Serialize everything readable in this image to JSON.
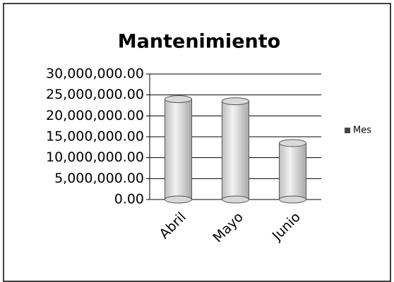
{
  "chart_data": {
    "type": "bar",
    "title": "Mantenimiento",
    "categories": [
      "Abril",
      "Mayo",
      "Junio"
    ],
    "series": [
      {
        "name": "Mes",
        "color": "#d9d9d9",
        "values": [
          24000000,
          23500000,
          13500000
        ]
      }
    ],
    "ylim": [
      0,
      30000000
    ],
    "yticks": [
      {
        "value": 0,
        "label": "0.00"
      },
      {
        "value": 5000000,
        "label": "5,000,000.00"
      },
      {
        "value": 10000000,
        "label": "10,000,000.00"
      },
      {
        "value": 15000000,
        "label": "15,000,000.00"
      },
      {
        "value": 20000000,
        "label": "20,000,000.00"
      },
      {
        "value": 25000000,
        "label": "25,000,000.00"
      },
      {
        "value": 30000000,
        "label": "30,000,000.00"
      }
    ],
    "grid": true,
    "legend": "right"
  }
}
